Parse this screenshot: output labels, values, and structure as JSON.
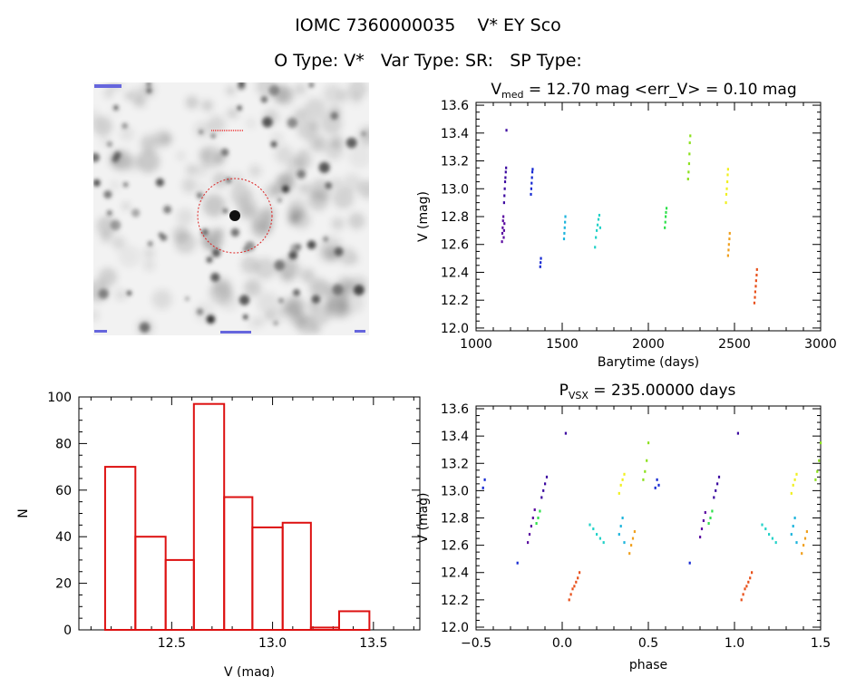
{
  "header": {
    "line1": "IOMC 7360000035    V* EY Sco",
    "line2": "O Type: V*   Var Type: SR:   SP Type:"
  },
  "colors": {
    "hist_edge": "#dd1111",
    "seasons": [
      "#5a0aa0",
      "#3c0aa0",
      "#1428d2",
      "#1cb4dc",
      "#22d2c8",
      "#2ee04a",
      "#8ce11e",
      "#f0f01e",
      "#f0a01e",
      "#e8501a"
    ]
  },
  "lightcurve": {
    "title_main": "V",
    "title_sub": "med",
    "title_rest": " = 12.70 mag <err_V> = 0.10 mag",
    "xlabel": "Barytime (days)",
    "ylabel": "V (mag)",
    "xticks": [
      "1000",
      "1500",
      "2000",
      "2500",
      "3000"
    ],
    "yticks": [
      "12.0",
      "12.2",
      "12.4",
      "12.6",
      "12.8",
      "13.0",
      "13.2",
      "13.4",
      "13.6"
    ]
  },
  "histogram": {
    "xlabel": "V (mag)",
    "ylabel": "N",
    "xticks": [
      "12.5",
      "13.0",
      "13.5"
    ],
    "yticks": [
      "0",
      "20",
      "40",
      "60",
      "80",
      "100"
    ]
  },
  "phaseplot": {
    "title_main": "P",
    "title_sub": "VSX",
    "title_rest": " = 235.00000 days",
    "xlabel": "phase",
    "ylabel": "V (mag)",
    "xticks": [
      "−0.5",
      "0.0",
      "0.5",
      "1.0",
      "1.5"
    ],
    "yticks": [
      "12.0",
      "12.2",
      "12.4",
      "12.6",
      "12.8",
      "13.0",
      "13.2",
      "13.4",
      "13.6"
    ]
  },
  "chart_data": [
    {
      "type": "scatter",
      "name": "light curve",
      "xlabel": "Barytime (days)",
      "ylabel": "V (mag)",
      "xlim": [
        1000,
        3000
      ],
      "ylim": [
        13.62,
        11.98
      ],
      "series": [
        {
          "color_index": 0,
          "x": [
            1150,
            1152,
            1154,
            1156,
            1158,
            1160,
            1162,
            1164
          ],
          "y": [
            12.62,
            12.68,
            12.72,
            12.77,
            12.8,
            12.65,
            12.7,
            12.75
          ]
        },
        {
          "color_index": 1,
          "x": [
            1162,
            1164,
            1166,
            1168,
            1170,
            1172,
            1174,
            1176
          ],
          "y": [
            12.9,
            12.95,
            13.0,
            13.05,
            13.08,
            13.12,
            13.15,
            13.42
          ]
        },
        {
          "color_index": 2,
          "x": [
            1318,
            1320,
            1322,
            1324,
            1326,
            1328
          ],
          "y": [
            12.96,
            13.0,
            13.04,
            13.08,
            13.12,
            13.14
          ]
        },
        {
          "color_index": 2,
          "x": [
            1372,
            1374,
            1376
          ],
          "y": [
            12.44,
            12.47,
            12.5
          ]
        },
        {
          "color_index": 3,
          "x": [
            1510,
            1512,
            1514,
            1516,
            1518
          ],
          "y": [
            12.64,
            12.68,
            12.72,
            12.76,
            12.8
          ]
        },
        {
          "color_index": 4,
          "x": [
            1690,
            1695,
            1700,
            1705,
            1710,
            1715,
            1720
          ],
          "y": [
            12.58,
            12.65,
            12.7,
            12.74,
            12.78,
            12.81,
            12.72
          ]
        },
        {
          "color_index": 5,
          "x": [
            2095,
            2098,
            2100,
            2102,
            2105
          ],
          "y": [
            12.72,
            12.76,
            12.8,
            12.83,
            12.86
          ]
        },
        {
          "color_index": 6,
          "x": [
            2230,
            2233,
            2236,
            2238,
            2240,
            2243
          ],
          "y": [
            13.07,
            13.12,
            13.18,
            13.25,
            13.33,
            13.38
          ]
        },
        {
          "color_index": 7,
          "x": [
            2450,
            2452,
            2455,
            2458,
            2460,
            2462
          ],
          "y": [
            12.9,
            12.96,
            13.0,
            13.05,
            13.1,
            13.14
          ]
        },
        {
          "color_index": 8,
          "x": [
            2462,
            2465,
            2467,
            2470,
            2472
          ],
          "y": [
            12.52,
            12.56,
            12.6,
            12.64,
            12.68
          ]
        },
        {
          "color_index": 9,
          "x": [
            2615,
            2618,
            2620,
            2623,
            2625,
            2628,
            2630
          ],
          "y": [
            12.18,
            12.22,
            12.26,
            12.3,
            12.34,
            12.38,
            12.42
          ]
        }
      ]
    },
    {
      "type": "bar",
      "name": "histogram",
      "xlabel": "V (mag)",
      "ylabel": "N",
      "xlim": [
        12.04,
        13.73
      ],
      "ylim": [
        0,
        100
      ],
      "bin_edges": [
        12.17,
        12.32,
        12.47,
        12.61,
        12.76,
        12.9,
        13.05,
        13.19,
        13.33,
        13.48
      ],
      "values": [
        70,
        40,
        30,
        97,
        57,
        44,
        46,
        1,
        8
      ]
    },
    {
      "type": "scatter",
      "name": "phase plot",
      "xlabel": "phase",
      "ylabel": "V (mag)",
      "xlim": [
        -0.5,
        1.5
      ],
      "ylim": [
        13.62,
        11.98
      ],
      "period_days": 235.0,
      "series": [
        {
          "color_index": 0,
          "x": [
            -0.2,
            -0.19,
            -0.18,
            -0.17,
            -0.16,
            0.8,
            0.81,
            0.82,
            0.83
          ],
          "y": [
            12.62,
            12.68,
            12.74,
            12.8,
            12.86,
            12.66,
            12.72,
            12.78,
            12.84
          ]
        },
        {
          "color_index": 1,
          "x": [
            -0.12,
            -0.11,
            -0.1,
            -0.09,
            0.88,
            0.89,
            0.9,
            0.91,
            0.02,
            1.02
          ],
          "y": [
            12.95,
            13.0,
            13.05,
            13.1,
            12.95,
            13.0,
            13.05,
            13.1,
            13.42,
            13.42
          ]
        },
        {
          "color_index": 2,
          "x": [
            -0.46,
            -0.45,
            0.54,
            0.55,
            -0.26,
            0.74,
            0.56
          ],
          "y": [
            13.02,
            13.08,
            13.02,
            13.08,
            12.47,
            12.47,
            13.04
          ]
        },
        {
          "color_index": 3,
          "x": [
            0.33,
            0.34,
            0.35,
            1.33,
            1.34,
            1.35,
            0.36,
            1.36
          ],
          "y": [
            12.68,
            12.74,
            12.8,
            12.68,
            12.74,
            12.8,
            12.62,
            12.62
          ]
        },
        {
          "color_index": 4,
          "x": [
            0.16,
            0.18,
            0.2,
            0.22,
            0.24,
            1.16,
            1.18,
            1.2,
            1.22,
            1.24
          ],
          "y": [
            12.75,
            12.72,
            12.68,
            12.65,
            12.62,
            12.75,
            12.72,
            12.68,
            12.65,
            12.62
          ]
        },
        {
          "color_index": 5,
          "x": [
            -0.15,
            -0.14,
            -0.13,
            0.85,
            0.86,
            0.87
          ],
          "y": [
            12.76,
            12.8,
            12.85,
            12.76,
            12.8,
            12.85
          ]
        },
        {
          "color_index": 6,
          "x": [
            0.47,
            0.48,
            0.49,
            0.5,
            1.47,
            1.48,
            1.49,
            1.5
          ],
          "y": [
            13.08,
            13.14,
            13.22,
            13.35,
            13.08,
            13.14,
            13.22,
            13.35
          ]
        },
        {
          "color_index": 7,
          "x": [
            0.33,
            0.34,
            0.35,
            0.36,
            1.33,
            1.34,
            1.35,
            1.36
          ],
          "y": [
            12.98,
            13.04,
            13.08,
            13.12,
            12.98,
            13.04,
            13.08,
            13.12
          ]
        },
        {
          "color_index": 8,
          "x": [
            0.39,
            0.4,
            0.41,
            0.42,
            1.39,
            1.4,
            1.41,
            1.42
          ],
          "y": [
            12.54,
            12.6,
            12.65,
            12.7,
            12.54,
            12.6,
            12.65,
            12.7
          ]
        },
        {
          "color_index": 9,
          "x": [
            0.04,
            0.05,
            0.06,
            0.07,
            0.08,
            0.09,
            0.1,
            1.04,
            1.05,
            1.06,
            1.07,
            1.08,
            1.09,
            1.1
          ],
          "y": [
            12.2,
            12.24,
            12.28,
            12.3,
            12.33,
            12.36,
            12.4,
            12.2,
            12.24,
            12.28,
            12.3,
            12.33,
            12.36,
            12.4
          ]
        }
      ]
    }
  ]
}
